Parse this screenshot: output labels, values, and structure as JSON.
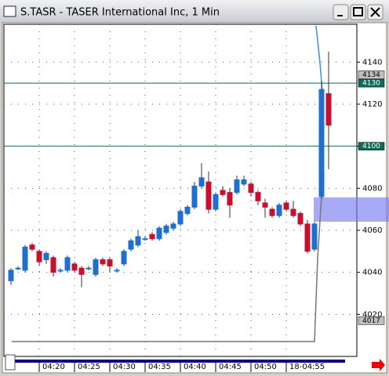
{
  "window_title": "S.TASR - TASER International Inc, 1 Min",
  "chart_data": {
    "type": "candlestick",
    "categories": [
      null,
      null,
      null,
      null,
      "04:20",
      null,
      null,
      null,
      null,
      "04:25",
      null,
      null,
      null,
      null,
      "04:30",
      null,
      null,
      null,
      null,
      "04:35",
      null,
      null,
      null,
      null,
      "04:40",
      null,
      null,
      null,
      null,
      "04:45",
      null,
      null,
      null,
      null,
      "04:50",
      null,
      null,
      null,
      null,
      "18-04:55",
      null,
      null,
      null,
      null,
      null,
      null
    ],
    "open": [
      4036,
      4042,
      4041,
      4053,
      4050,
      4046,
      4047,
      4041,
      4041,
      4044,
      4042,
      4042,
      4039,
      4046,
      4046,
      4041,
      4044,
      4051,
      4053,
      4056,
      4058,
      4056,
      4059,
      4061,
      4063,
      4068,
      4071,
      4081,
      4083,
      4070,
      4079,
      4078,
      4078,
      4082,
      4082,
      4078,
      4073,
      4070,
      4067,
      4073,
      4070,
      4068,
      4063,
      4051,
      4076,
      4125
    ],
    "high": [
      4042,
      4043,
      4053,
      4054,
      4051,
      4050,
      4048,
      4042,
      4048,
      4045,
      4043,
      4043,
      4047,
      4047,
      4047,
      4042,
      4051,
      4056,
      4060,
      4057,
      4059,
      4062,
      4063,
      4064,
      4070,
      4072,
      4083,
      4092,
      4088,
      4078,
      4081,
      4080,
      4086,
      4086,
      4083,
      4079,
      4075,
      4071,
      4073,
      4074,
      4074,
      4069,
      4065,
      4064,
      4131,
      4145
    ],
    "low": [
      4034,
      4041,
      4040,
      4050,
      4043,
      4044,
      4038,
      4040,
      4040,
      4040,
      4033,
      4041,
      4038,
      4043,
      4040,
      4040,
      4043,
      4050,
      4052,
      4055,
      4055,
      4055,
      4058,
      4060,
      4062,
      4067,
      4070,
      4080,
      4068,
      4069,
      4076,
      4066,
      4077,
      4081,
      4076,
      4072,
      4066,
      4066,
      4066,
      4069,
      4066,
      4062,
      4049,
      4050,
      4075,
      4089
    ],
    "close": [
      4041,
      4042,
      4052,
      4051,
      4045,
      4049,
      4040,
      4041,
      4047,
      4041,
      4039,
      4042,
      4046,
      4044,
      4043,
      4041,
      4050,
      4055,
      4057,
      4056,
      4056,
      4061,
      4062,
      4063,
      4069,
      4071,
      4081,
      4085,
      4070,
      4077,
      4077,
      4072,
      4084,
      4084,
      4078,
      4074,
      4071,
      4067,
      4072,
      4070,
      4067,
      4063,
      4050,
      4063,
      4127,
      4110
    ],
    "up_color": "#1f6fd0",
    "down_color": "#c8102e",
    "ylim": [
      4000,
      4158
    ],
    "yticks": [
      4020,
      4040,
      4060,
      4080,
      4100,
      4120,
      4140
    ],
    "grid": true,
    "price_tags": [
      {
        "value": 4134,
        "color": "#c0c0c0",
        "line": false
      },
      {
        "value": 4130,
        "color": "#0e6b5a",
        "line": true
      },
      {
        "value": 4100,
        "color": "#0e6b5a",
        "line": true
      },
      {
        "value": 4017,
        "color": "#c0c0c0",
        "line": false
      }
    ]
  }
}
